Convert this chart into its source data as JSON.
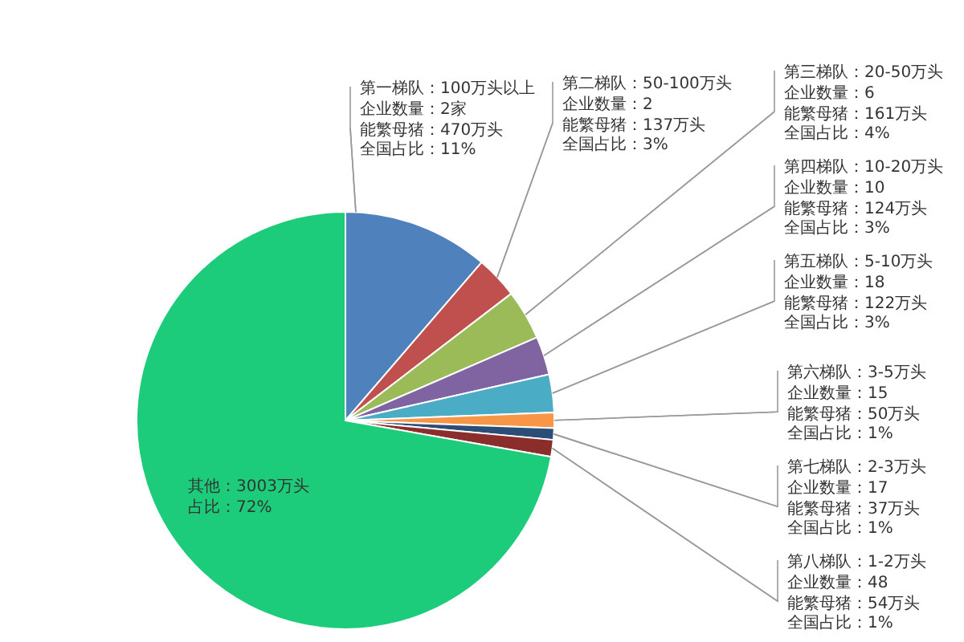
{
  "chart_data": {
    "type": "pie",
    "categories": [
      "第一梯队：100万头以上",
      "第二梯队：50-100万头",
      "第三梯队：20-50万头",
      "第四梯队：10-20万头",
      "第五梯队：5-10万头",
      "第六梯队：3-5万头",
      "第七梯队：2-3万头",
      "第八梯队：1-2万头",
      "其他：3003万头"
    ],
    "values": [
      470,
      137,
      161,
      124,
      122,
      50,
      37,
      54,
      3003
    ],
    "value_labels": [
      "能繁母猪：470万头",
      "能繁母猪：137万头",
      "能繁母猪：161万头",
      "能繁母猪：124万头",
      "能繁母猪：122万头",
      "能繁母猪：50万头",
      "能繁母猪：37万头",
      "能繁母猪：54万头",
      null
    ],
    "annotations": [
      "企业数量：2家",
      "全国占比：11%",
      "企业数量：2",
      "全国占比：3%",
      "企业数量：6",
      "全国占比：4%",
      "企业数量：10",
      "全国占比：3%",
      "企业数量：18",
      "全国占比：3%",
      "企业数量：15",
      "全国占比：1%",
      "企业数量：17",
      "全国占比：1%",
      "企业数量：48",
      "全国占比：1%",
      "占比：72%"
    ],
    "colors": [
      "#4f81bd",
      "#c0504d",
      "#9bbb59",
      "#8064a2",
      "#4bacc6",
      "#f79646",
      "#2c4d75",
      "#8b2e2b",
      "#1dcc7a"
    ],
    "legend": false
  }
}
